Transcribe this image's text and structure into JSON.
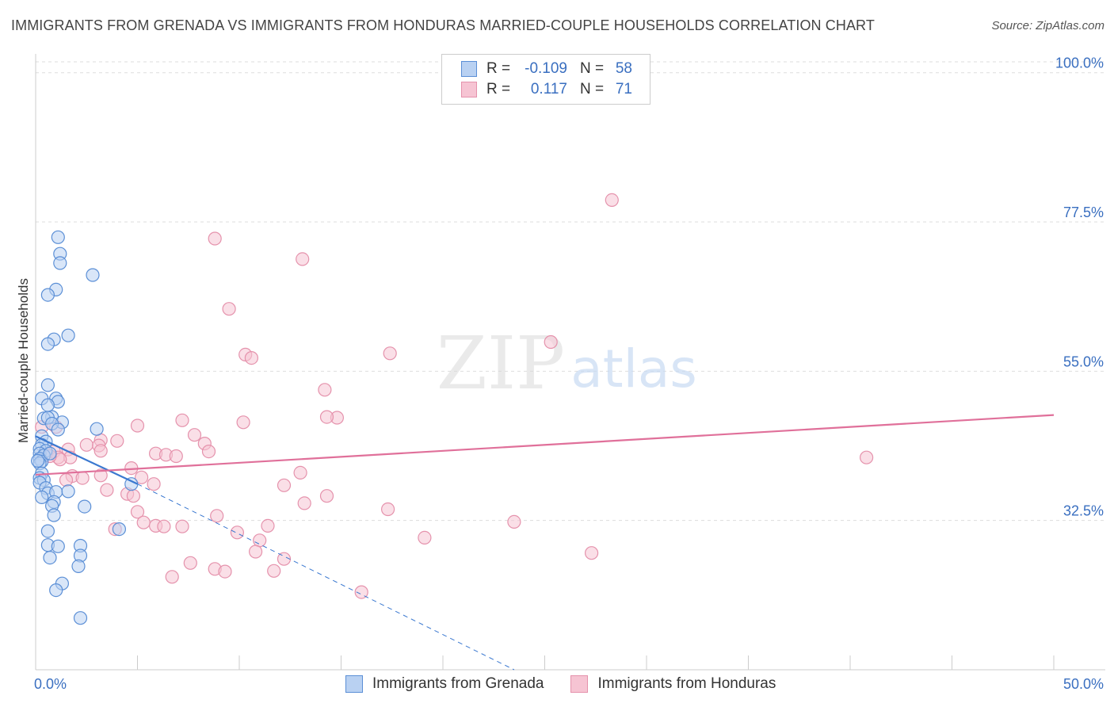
{
  "header": {
    "title": "IMMIGRANTS FROM GRENADA VS IMMIGRANTS FROM HONDURAS MARRIED-COUPLE HOUSEHOLDS CORRELATION CHART",
    "source": "Source: ZipAtlas.com"
  },
  "watermark": {
    "zip": "ZIP",
    "atlas": "atlas"
  },
  "colors": {
    "blue": "#5b8fd6",
    "blue_fill": "#b9d1f2",
    "blue_line": "#3a78d0",
    "pink": "#e592ac",
    "pink_fill": "#f6c4d3",
    "pink_line": "#e0709a",
    "grid": "#dddddd",
    "axis_text": "#3a6fc0"
  },
  "legend": {
    "rows": [
      {
        "r_label": "R =",
        "r_value": "-0.109",
        "n_label": "N =",
        "n_value": "58"
      },
      {
        "r_label": "R =",
        "r_value": "0.117",
        "n_label": "N =",
        "n_value": "71"
      }
    ]
  },
  "chart_data": {
    "type": "scatter",
    "title": "IMMIGRANTS FROM GRENADA VS IMMIGRANTS FROM HONDURAS MARRIED-COUPLE HOUSEHOLDS CORRELATION CHART",
    "xlabel": "",
    "ylabel": "Married-couple Households",
    "xlim": [
      0,
      50
    ],
    "ylim": [
      10,
      102
    ],
    "x_tick_labels": [
      "0.0%",
      "50.0%"
    ],
    "y_ticks": [
      32.5,
      55.0,
      77.5,
      100.0
    ],
    "y_tick_labels": [
      "32.5%",
      "55.0%",
      "77.5%",
      "100.0%"
    ],
    "grid": true,
    "legend_position": "top-center",
    "series": [
      {
        "name": "Immigrants from Grenada",
        "color": "#5b8fd6",
        "R": -0.109,
        "N": 58,
        "trend": {
          "x": [
            0,
            5.0
          ],
          "y": [
            45.2,
            38.0
          ],
          "dashed_to": [
            23.5,
            10.0
          ]
        },
        "points": [
          [
            1.1,
            75.2
          ],
          [
            1.2,
            72.7
          ],
          [
            1.2,
            71.3
          ],
          [
            2.8,
            69.5
          ],
          [
            1.0,
            67.3
          ],
          [
            0.6,
            66.5
          ],
          [
            1.6,
            60.4
          ],
          [
            0.9,
            59.8
          ],
          [
            0.6,
            59.1
          ],
          [
            0.6,
            52.9
          ],
          [
            0.3,
            50.9
          ],
          [
            1.0,
            50.9
          ],
          [
            1.1,
            50.4
          ],
          [
            0.6,
            49.9
          ],
          [
            0.8,
            48.1
          ],
          [
            0.4,
            47.9
          ],
          [
            0.6,
            48.0
          ],
          [
            1.3,
            47.3
          ],
          [
            0.8,
            47.1
          ],
          [
            1.1,
            46.2
          ],
          [
            3.0,
            46.3
          ],
          [
            0.3,
            45.2
          ],
          [
            0.5,
            44.4
          ],
          [
            0.3,
            43.9
          ],
          [
            0.2,
            43.3
          ],
          [
            0.5,
            43.0
          ],
          [
            0.2,
            42.6
          ],
          [
            0.4,
            42.3
          ],
          [
            0.2,
            41.8
          ],
          [
            0.3,
            41.4
          ],
          [
            0.2,
            41.1
          ],
          [
            0.3,
            39.6
          ],
          [
            0.2,
            38.9
          ],
          [
            0.4,
            38.6
          ],
          [
            0.2,
            38.2
          ],
          [
            0.5,
            37.4
          ],
          [
            0.6,
            36.6
          ],
          [
            1.0,
            36.8
          ],
          [
            1.6,
            36.9
          ],
          [
            4.7,
            38.0
          ],
          [
            0.3,
            36.0
          ],
          [
            0.9,
            35.3
          ],
          [
            0.8,
            34.7
          ],
          [
            2.4,
            34.6
          ],
          [
            0.9,
            33.3
          ],
          [
            0.6,
            30.9
          ],
          [
            4.1,
            31.2
          ],
          [
            0.6,
            28.8
          ],
          [
            1.1,
            28.6
          ],
          [
            2.2,
            28.7
          ],
          [
            2.2,
            27.2
          ],
          [
            0.7,
            26.9
          ],
          [
            2.1,
            25.6
          ],
          [
            1.3,
            23.0
          ],
          [
            1.0,
            22.0
          ],
          [
            2.2,
            17.8
          ],
          [
            0.1,
            41.5
          ],
          [
            0.7,
            42.6
          ]
        ]
      },
      {
        "name": "Immigrants from Honduras",
        "color": "#e592ac",
        "R": 0.117,
        "N": 71,
        "trend": {
          "x": [
            0,
            50
          ],
          "y": [
            39.4,
            48.4
          ]
        },
        "points": [
          [
            28.3,
            80.8
          ],
          [
            8.8,
            75.0
          ],
          [
            13.1,
            71.9
          ],
          [
            9.5,
            64.4
          ],
          [
            25.3,
            59.4
          ],
          [
            10.3,
            57.5
          ],
          [
            17.4,
            57.7
          ],
          [
            10.6,
            57.0
          ],
          [
            14.2,
            52.2
          ],
          [
            14.8,
            48.0
          ],
          [
            14.3,
            48.1
          ],
          [
            7.2,
            47.6
          ],
          [
            10.2,
            47.3
          ],
          [
            5.0,
            46.8
          ],
          [
            0.3,
            46.6
          ],
          [
            1.0,
            46.6
          ],
          [
            7.8,
            45.4
          ],
          [
            3.2,
            44.6
          ],
          [
            4.0,
            44.5
          ],
          [
            8.3,
            44.1
          ],
          [
            2.5,
            43.9
          ],
          [
            3.1,
            43.8
          ],
          [
            1.6,
            43.2
          ],
          [
            3.2,
            43.0
          ],
          [
            5.9,
            42.6
          ],
          [
            6.4,
            42.4
          ],
          [
            8.5,
            42.9
          ],
          [
            6.9,
            42.2
          ],
          [
            0.9,
            42.9
          ],
          [
            0.5,
            42.6
          ],
          [
            1.1,
            42.0
          ],
          [
            1.7,
            42.0
          ],
          [
            1.2,
            41.7
          ],
          [
            0.7,
            42.2
          ],
          [
            40.8,
            42.0
          ],
          [
            4.7,
            40.4
          ],
          [
            13.0,
            39.7
          ],
          [
            1.8,
            39.2
          ],
          [
            3.2,
            39.3
          ],
          [
            5.2,
            39.0
          ],
          [
            2.3,
            38.9
          ],
          [
            1.5,
            38.6
          ],
          [
            5.8,
            38.0
          ],
          [
            12.2,
            37.8
          ],
          [
            3.5,
            37.1
          ],
          [
            4.5,
            36.5
          ],
          [
            4.8,
            36.2
          ],
          [
            14.3,
            36.2
          ],
          [
            13.2,
            35.1
          ],
          [
            17.3,
            34.2
          ],
          [
            5.0,
            33.8
          ],
          [
            8.9,
            33.2
          ],
          [
            5.3,
            32.2
          ],
          [
            23.5,
            32.3
          ],
          [
            5.9,
            31.7
          ],
          [
            6.3,
            31.6
          ],
          [
            7.2,
            31.6
          ],
          [
            11.4,
            31.7
          ],
          [
            3.9,
            31.2
          ],
          [
            9.9,
            30.7
          ],
          [
            11.0,
            29.5
          ],
          [
            19.1,
            29.9
          ],
          [
            10.8,
            27.8
          ],
          [
            27.3,
            27.6
          ],
          [
            12.2,
            26.7
          ],
          [
            7.6,
            26.1
          ],
          [
            8.8,
            25.2
          ],
          [
            9.3,
            24.8
          ],
          [
            11.7,
            24.9
          ],
          [
            6.7,
            24.0
          ],
          [
            16.0,
            21.7
          ]
        ]
      }
    ]
  }
}
